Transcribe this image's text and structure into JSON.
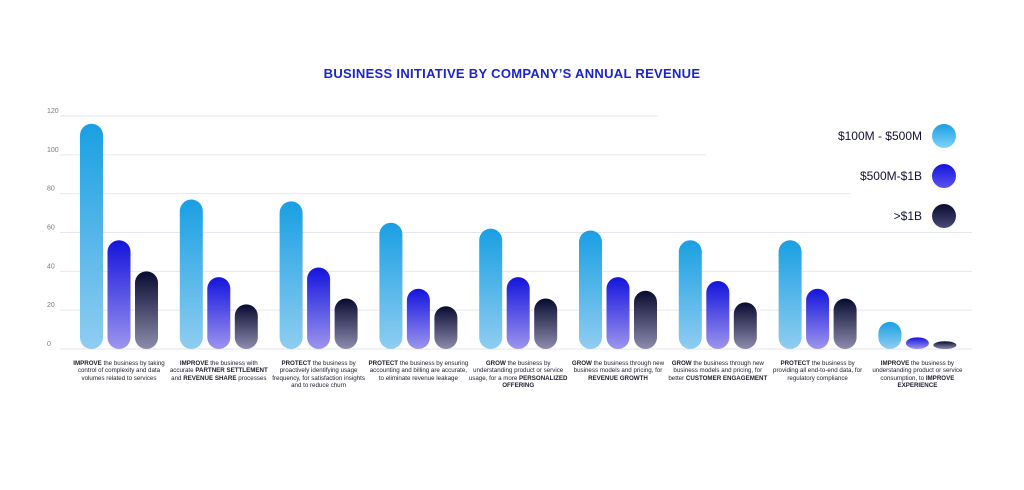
{
  "chart_data": {
    "type": "bar",
    "title": "BUSINESS INITIATIVE BY COMPANY’S ANNUAL REVENUE",
    "xlabel": "",
    "ylabel": "",
    "ylim": [
      0,
      120
    ],
    "yticks": [
      0,
      20,
      40,
      60,
      80,
      100,
      120
    ],
    "grid": true,
    "legend_position": "right",
    "categories": [
      [
        {
          "t": "IMPROVE",
          "b": true
        },
        {
          "t": " the business by taking control of complexity and data volumes related to services"
        }
      ],
      [
        {
          "t": "IMPROVE",
          "b": true
        },
        {
          "t": " the business with accurate "
        },
        {
          "t": "PARTNER SETTLEMENT",
          "b": true
        },
        {
          "t": " and "
        },
        {
          "t": "REVENUE SHARE",
          "b": true
        },
        {
          "t": " processes"
        }
      ],
      [
        {
          "t": "PROTECT",
          "b": true
        },
        {
          "t": " the business by proactively identifying usage frequency, for satisfaction insights and to reduce churn"
        }
      ],
      [
        {
          "t": "PROTECT",
          "b": true
        },
        {
          "t": " the business by ensuring accounting and billing are accurate, to eliminate revenue leakage"
        }
      ],
      [
        {
          "t": "GROW",
          "b": true
        },
        {
          "t": " the business by understanding product or service usage, for a more "
        },
        {
          "t": "PERSONALIZED OFFERING",
          "b": true
        }
      ],
      [
        {
          "t": "GROW",
          "b": true
        },
        {
          "t": " the business through new business models and pricing, for "
        },
        {
          "t": "REVENUE GROWTH",
          "b": true
        }
      ],
      [
        {
          "t": "GROW",
          "b": true
        },
        {
          "t": " the business through new business models and pricing, for better "
        },
        {
          "t": "CUSTOMER ENGAGEMENT",
          "b": true
        }
      ],
      [
        {
          "t": "PROTECT",
          "b": true
        },
        {
          "t": " the business by providing all end-to-end data, for regulatory compliance"
        }
      ],
      [
        {
          "t": "IMPROVE",
          "b": true
        },
        {
          "t": " the business by understanding product or service consumption, to "
        },
        {
          "t": "IMPROVE EXPERIENCE",
          "b": true
        }
      ]
    ],
    "series": [
      {
        "name": "$100M - $500M",
        "color": "#1ea4e6",
        "values": [
          116,
          77,
          76,
          65,
          62,
          61,
          56,
          56,
          14
        ]
      },
      {
        "name": "$500M-$1B",
        "color": "#1d1de0",
        "values": [
          56,
          37,
          42,
          31,
          37,
          37,
          35,
          31,
          6
        ]
      },
      {
        "name": ">$1B",
        "color": "#0d1040",
        "values": [
          40,
          23,
          26,
          22,
          26,
          30,
          24,
          26,
          4
        ]
      }
    ]
  }
}
